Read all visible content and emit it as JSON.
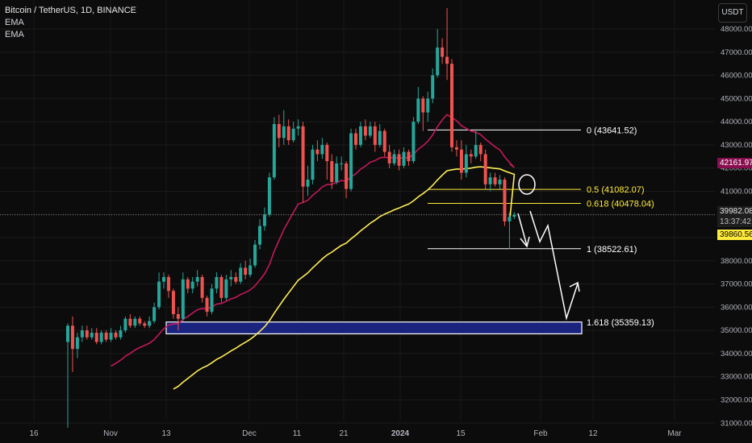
{
  "header": {
    "symbol": "Bitcoin / TetherUS, 1D, BINANCE",
    "indicator_1": "EMA",
    "indicator_2": "EMA"
  },
  "currency_button": "USDT",
  "price_tags": {
    "ema_red": "42161.97",
    "last_price": "39982.08",
    "countdown": "13:37:42",
    "ema_yellow": "39860.56"
  },
  "colors": {
    "background": "#0c0c0c",
    "candle_up": "#26a69a",
    "candle_down": "#ef5350",
    "ema_fast": "#c2185b",
    "ema_slow": "#ffee58",
    "fib_yellow": "#ffeb3b",
    "zone_fill": "#1a237e",
    "zone_border": "#ffffff"
  },
  "chart_data": {
    "type": "candlestick",
    "y_range": [
      30800,
      48900
    ],
    "y_ticks": [
      31000,
      32000,
      33000,
      34000,
      35000,
      36000,
      37000,
      38000,
      39000,
      40000,
      41000,
      42000,
      43000,
      44000,
      45000,
      46000,
      47000,
      48000
    ],
    "y_tick_labels": [
      "31000.00",
      "32000.00",
      "33000.00",
      "34000.00",
      "35000.00",
      "36000.00",
      "37000.00",
      "38000.00",
      "39000.00",
      "40000.00",
      "41000.00",
      "42000.00",
      "43000.00",
      "44000.00",
      "45000.00",
      "46000.00",
      "47000.00",
      "48000.00"
    ],
    "x_labels": [
      "16",
      "Nov",
      "13",
      "Dec",
      "11",
      "21",
      "2024",
      "15",
      "Feb",
      "12",
      "Mar"
    ],
    "fib_levels": [
      {
        "label": "0 (43641.52)",
        "price": 43641.52,
        "color": "#ffffff"
      },
      {
        "label": "0.5 (41082.07)",
        "price": 41082.07,
        "color": "#ffeb3b"
      },
      {
        "label": "0.618 (40478.04)",
        "price": 40478.04,
        "color": "#ffeb3b"
      },
      {
        "label": "1 (38522.61)",
        "price": 38522.61,
        "color": "#ffffff"
      },
      {
        "label": "1.618 (35359.13)",
        "price": 35359.13,
        "color": "#ffffff"
      }
    ],
    "support_zone": [
      34850,
      35359.13
    ],
    "last_price": 39982.08,
    "ema_fast_last": 42161.97,
    "ema_slow_last": 39860.56,
    "candles": [
      [
        34500,
        35200,
        30800,
        35300,
        35200
      ],
      [
        35200,
        34200,
        33200,
        35600,
        34200
      ],
      [
        34200,
        34700,
        33800,
        34900,
        34700
      ],
      [
        34700,
        35000,
        34500,
        35200,
        35000
      ],
      [
        35000,
        34700,
        34600,
        35200,
        34700
      ],
      [
        34700,
        34900,
        34600,
        35100,
        34900
      ],
      [
        34900,
        34500,
        34400,
        35100,
        34500
      ],
      [
        34500,
        34900,
        34400,
        35000,
        34900
      ],
      [
        34900,
        34600,
        34500,
        35000,
        34600
      ],
      [
        34600,
        34900,
        34500,
        35100,
        34900
      ],
      [
        34900,
        34700,
        34600,
        35000,
        34700
      ],
      [
        34700,
        35000,
        34600,
        35200,
        35000
      ],
      [
        35000,
        35500,
        34900,
        35600,
        35500
      ],
      [
        35500,
        35200,
        35100,
        35700,
        35200
      ],
      [
        35200,
        35500,
        35100,
        35600,
        35500
      ],
      [
        35500,
        35300,
        35200,
        35600,
        35300
      ],
      [
        35300,
        35200,
        35100,
        35400,
        35200
      ],
      [
        35200,
        35400,
        35100,
        35600,
        35400
      ],
      [
        35400,
        36000,
        35300,
        36200,
        36000
      ],
      [
        36000,
        37100,
        35900,
        37500,
        37100
      ],
      [
        37100,
        37300,
        36800,
        37500,
        37300
      ],
      [
        37300,
        36700,
        36400,
        37400,
        36700
      ],
      [
        36700,
        35700,
        35500,
        36800,
        35700
      ],
      [
        35700,
        35500,
        35000,
        36000,
        35500
      ],
      [
        35500,
        37200,
        35400,
        37500,
        37200
      ],
      [
        37200,
        36800,
        36600,
        37300,
        36800
      ],
      [
        36800,
        37100,
        36600,
        37300,
        37100
      ],
      [
        37100,
        37300,
        36900,
        37600,
        37300
      ],
      [
        37300,
        36400,
        36200,
        37400,
        36400
      ],
      [
        36400,
        35800,
        35600,
        36500,
        35800
      ],
      [
        35800,
        36800,
        35700,
        37000,
        36800
      ],
      [
        36800,
        37300,
        36600,
        37500,
        37300
      ],
      [
        37300,
        36400,
        36200,
        37400,
        36400
      ],
      [
        36400,
        37200,
        36300,
        37400,
        37200
      ],
      [
        37200,
        37300,
        36900,
        37600,
        37300
      ],
      [
        37300,
        37100,
        37000,
        37500,
        37100
      ],
      [
        37100,
        37700,
        37000,
        37900,
        37700
      ],
      [
        37700,
        37400,
        37200,
        38000,
        37400
      ],
      [
        37400,
        37800,
        37300,
        38100,
        37800
      ],
      [
        37800,
        38700,
        37700,
        38900,
        38700
      ],
      [
        38700,
        39500,
        38500,
        39800,
        39500
      ],
      [
        39500,
        40000,
        39300,
        40300,
        40000
      ],
      [
        40000,
        41600,
        39900,
        41800,
        41600
      ],
      [
        41600,
        43900,
        41500,
        44200,
        43900
      ],
      [
        43900,
        43300,
        42900,
        44300,
        43300
      ],
      [
        43300,
        43800,
        43000,
        44500,
        43800
      ],
      [
        43800,
        43200,
        43000,
        44100,
        43200
      ],
      [
        43200,
        43700,
        43100,
        44000,
        43700
      ],
      [
        43700,
        43800,
        43400,
        44100,
        43800
      ],
      [
        43800,
        41200,
        40500,
        44000,
        41200
      ],
      [
        41200,
        41500,
        40800,
        42100,
        41500
      ],
      [
        41500,
        42800,
        41300,
        43000,
        42800
      ],
      [
        42800,
        42600,
        42300,
        43200,
        42600
      ],
      [
        42600,
        43000,
        42400,
        43300,
        43000
      ],
      [
        43000,
        42300,
        41500,
        43100,
        42300
      ],
      [
        42300,
        41400,
        41100,
        42600,
        41400
      ],
      [
        41400,
        42200,
        41300,
        42500,
        42200
      ],
      [
        42200,
        42200,
        41900,
        42500,
        42200
      ],
      [
        42200,
        41100,
        40700,
        42300,
        41100
      ],
      [
        41100,
        43500,
        41000,
        43700,
        43500
      ],
      [
        43500,
        43000,
        42800,
        43700,
        43000
      ],
      [
        43000,
        43800,
        42900,
        44000,
        43800
      ],
      [
        43800,
        43400,
        43200,
        44100,
        43400
      ],
      [
        43400,
        43800,
        43300,
        44000,
        43800
      ],
      [
        43800,
        43000,
        42700,
        44000,
        43000
      ],
      [
        43000,
        43600,
        42900,
        43900,
        43600
      ],
      [
        43600,
        42700,
        42500,
        43700,
        42700
      ],
      [
        42700,
        42200,
        42000,
        43000,
        42200
      ],
      [
        42200,
        42600,
        42100,
        42800,
        42600
      ],
      [
        42600,
        42100,
        41900,
        42800,
        42100
      ],
      [
        42100,
        42700,
        42000,
        42900,
        42700
      ],
      [
        42700,
        42300,
        42100,
        42800,
        42300
      ],
      [
        42300,
        44000,
        42200,
        44200,
        44000
      ],
      [
        44000,
        45000,
        43900,
        45500,
        45000
      ],
      [
        45000,
        44400,
        43600,
        45100,
        44400
      ],
      [
        44400,
        45000,
        44000,
        45300,
        45000
      ],
      [
        45000,
        46000,
        44800,
        46300,
        46000
      ],
      [
        46000,
        47200,
        45900,
        48000,
        47200
      ],
      [
        47200,
        46800,
        46500,
        47600,
        46800
      ],
      [
        46800,
        46500,
        45800,
        48900,
        46500
      ],
      [
        46500,
        42900,
        42700,
        46700,
        42900
      ],
      [
        42900,
        42800,
        42500,
        43200,
        42800
      ],
      [
        42800,
        41800,
        41500,
        43200,
        41800
      ],
      [
        41800,
        42600,
        41600,
        43000,
        42600
      ],
      [
        42600,
        42500,
        42200,
        42800,
        42500
      ],
      [
        42500,
        43000,
        42400,
        43600,
        43000
      ],
      [
        43000,
        42600,
        42300,
        43100,
        42600
      ],
      [
        42600,
        41300,
        41100,
        42800,
        41300
      ],
      [
        41300,
        41600,
        41000,
        41800,
        41600
      ],
      [
        41600,
        41300,
        41200,
        41800,
        41300
      ],
      [
        41300,
        41500,
        41100,
        41700,
        41500
      ],
      [
        41500,
        39700,
        39500,
        41600,
        39700
      ],
      [
        39700,
        39900,
        38500,
        40100,
        39900
      ],
      [
        39900,
        39982,
        39800,
        40100,
        39982
      ]
    ]
  }
}
